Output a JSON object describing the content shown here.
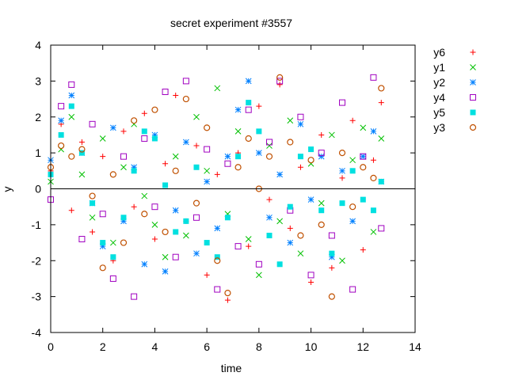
{
  "chart_data": {
    "type": "scatter",
    "title": "secret experiment #3557",
    "xlabel": "time",
    "ylabel": "y",
    "xlim": [
      0,
      14
    ],
    "ylim": [
      -4,
      4
    ],
    "xticks": [
      0,
      2,
      4,
      6,
      8,
      10,
      12,
      14
    ],
    "yticks": [
      -4,
      -3,
      -2,
      -1,
      0,
      1,
      2,
      3,
      4
    ],
    "grid": false,
    "legend_position": "outside-right-top",
    "zero_line": true,
    "series": [
      {
        "name": "y6",
        "marker": "plus",
        "color": "#ff0000",
        "x": [
          0.0,
          0.4,
          0.8,
          1.2,
          1.6,
          2.0,
          2.4,
          2.8,
          3.2,
          3.6,
          4.0,
          4.4,
          4.8,
          5.2,
          5.6,
          6.0,
          6.4,
          6.8,
          7.2,
          7.6,
          8.0,
          8.4,
          8.8,
          9.2,
          9.6,
          10.0,
          10.4,
          10.8,
          11.2,
          11.6,
          12.0,
          12.4,
          12.7
        ],
        "y": [
          0.5,
          1.8,
          -0.6,
          1.3,
          -1.2,
          0.9,
          -2.0,
          1.6,
          -0.5,
          2.1,
          -1.4,
          0.7,
          2.6,
          -0.9,
          1.2,
          -2.4,
          0.4,
          -3.1,
          1.0,
          -1.6,
          2.3,
          -0.3,
          2.9,
          -1.1,
          0.6,
          -2.6,
          1.5,
          -2.2,
          0.3,
          1.9,
          -1.7,
          0.8,
          2.4
        ]
      },
      {
        "name": "y1",
        "marker": "cross",
        "color": "#00c000",
        "x": [
          0.0,
          0.4,
          0.8,
          1.2,
          1.6,
          2.0,
          2.4,
          2.8,
          3.2,
          3.6,
          4.0,
          4.4,
          4.8,
          5.2,
          5.6,
          6.0,
          6.4,
          6.8,
          7.2,
          7.6,
          8.0,
          8.4,
          8.8,
          9.2,
          9.6,
          10.0,
          10.4,
          10.8,
          11.2,
          11.6,
          12.0,
          12.4,
          12.7
        ],
        "y": [
          0.2,
          1.1,
          2.0,
          0.4,
          -0.8,
          1.4,
          -1.5,
          0.6,
          1.8,
          -0.2,
          -1.0,
          -1.9,
          0.9,
          -1.3,
          2.0,
          0.5,
          2.8,
          -0.7,
          1.6,
          -1.4,
          -2.4,
          1.2,
          -0.9,
          1.9,
          -1.8,
          0.7,
          -0.4,
          1.5,
          -2.0,
          0.8,
          1.7,
          -1.2,
          1.4
        ]
      },
      {
        "name": "y2",
        "marker": "star",
        "color": "#0080ff",
        "x": [
          0.0,
          0.4,
          0.8,
          1.2,
          1.6,
          2.0,
          2.4,
          2.8,
          3.2,
          3.6,
          4.0,
          4.4,
          4.8,
          5.2,
          5.6,
          6.0,
          6.4,
          6.8,
          7.2,
          7.6,
          8.0,
          8.4,
          8.8,
          9.2,
          9.6,
          10.0,
          10.4,
          10.8,
          11.2,
          11.6,
          12.0,
          12.4,
          12.7
        ],
        "y": [
          0.8,
          1.9,
          2.6,
          1.0,
          -0.4,
          -1.6,
          1.7,
          -0.9,
          0.6,
          -2.1,
          1.5,
          -2.3,
          -0.6,
          1.3,
          -1.8,
          0.2,
          -1.1,
          0.9,
          2.2,
          3.0,
          1.0,
          -0.8,
          0.4,
          -1.5,
          1.8,
          -0.3,
          0.9,
          -1.9,
          0.5,
          -0.9,
          0.9,
          1.6,
          0.2
        ]
      },
      {
        "name": "y4",
        "marker": "open-square",
        "color": "#a000c0",
        "x": [
          0.0,
          0.4,
          0.8,
          1.2,
          1.6,
          2.0,
          2.4,
          2.8,
          3.2,
          3.6,
          4.0,
          4.4,
          4.8,
          5.2,
          5.6,
          6.0,
          6.4,
          6.8,
          7.2,
          7.6,
          8.0,
          8.4,
          8.8,
          9.2,
          9.6,
          10.0,
          10.4,
          10.8,
          11.2,
          11.6,
          12.0,
          12.4,
          12.7
        ],
        "y": [
          -0.3,
          2.3,
          2.9,
          -1.4,
          1.8,
          -0.7,
          -2.5,
          0.9,
          -3.0,
          1.4,
          -0.5,
          2.7,
          -1.9,
          3.0,
          -0.8,
          1.1,
          -2.8,
          0.7,
          -1.6,
          2.2,
          -2.1,
          1.3,
          3.0,
          -0.6,
          2.0,
          -2.4,
          1.0,
          -1.3,
          2.4,
          -2.8,
          0.9,
          3.1,
          -1.1
        ]
      },
      {
        "name": "y5",
        "marker": "filled-square",
        "color": "#00e0e0",
        "x": [
          0.0,
          0.4,
          0.8,
          1.2,
          1.6,
          2.0,
          2.4,
          2.8,
          3.2,
          3.6,
          4.0,
          4.4,
          4.8,
          5.2,
          5.6,
          6.0,
          6.4,
          6.8,
          7.2,
          7.6,
          8.0,
          8.4,
          8.8,
          9.2,
          9.6,
          10.0,
          10.4,
          10.8,
          11.2,
          11.6,
          12.0,
          12.4,
          12.7
        ],
        "y": [
          0.4,
          1.5,
          2.3,
          1.0,
          -0.4,
          -1.5,
          -1.9,
          -0.8,
          0.5,
          1.6,
          1.4,
          0.1,
          -1.2,
          -0.9,
          0.6,
          -1.5,
          -1.9,
          -0.8,
          0.9,
          2.4,
          1.6,
          -1.3,
          -2.1,
          -0.5,
          0.9,
          1.1,
          -0.6,
          -1.8,
          -0.4,
          0.5,
          -0.3,
          -0.6,
          0.2
        ]
      },
      {
        "name": "y3",
        "marker": "open-circle",
        "color": "#c05000",
        "x": [
          0.0,
          0.4,
          0.8,
          1.2,
          1.6,
          2.0,
          2.4,
          2.8,
          3.2,
          3.6,
          4.0,
          4.4,
          4.8,
          5.2,
          5.6,
          6.0,
          6.4,
          6.8,
          7.2,
          7.6,
          8.0,
          8.4,
          8.8,
          9.2,
          9.6,
          10.0,
          10.4,
          10.8,
          11.2,
          11.6,
          12.0,
          12.4,
          12.7
        ],
        "y": [
          0.6,
          1.2,
          0.9,
          1.1,
          -0.2,
          -2.2,
          0.4,
          -1.5,
          1.9,
          -0.7,
          2.2,
          -1.2,
          0.5,
          2.5,
          -0.4,
          1.7,
          -2.0,
          -2.9,
          0.6,
          1.4,
          0.0,
          0.9,
          3.1,
          1.3,
          -1.3,
          0.8,
          -1.0,
          -3.0,
          1.0,
          -0.5,
          0.6,
          0.3,
          2.8
        ]
      }
    ]
  }
}
